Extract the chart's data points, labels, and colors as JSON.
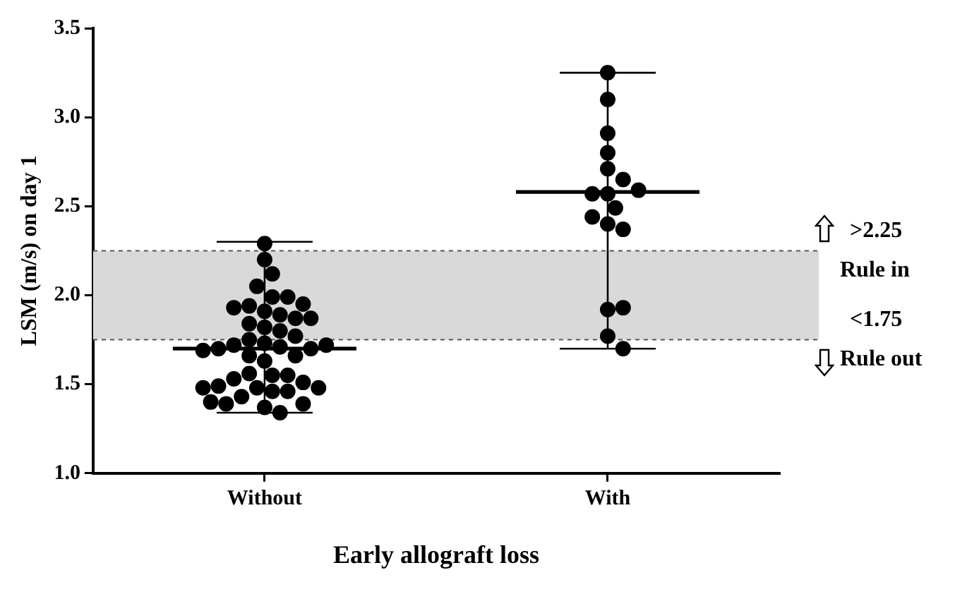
{
  "chart_data": {
    "type": "box",
    "xlabel": "Early allograft loss",
    "ylabel": "LSM (m/s) on day 1",
    "categories": [
      "Without",
      "With"
    ],
    "boxes": [
      {
        "low": 1.34,
        "q1": 1.7,
        "median": 1.7,
        "q3": 1.7,
        "high": 2.3
      },
      {
        "low": 1.7,
        "q1": 2.58,
        "median": 2.58,
        "q3": 2.58,
        "high": 3.25
      }
    ],
    "series": [
      {
        "type": "scatter",
        "color": "#000000",
        "x": [
          "Without",
          "Without",
          "Without",
          "Without",
          "Without",
          "Without",
          "Without",
          "Without",
          "Without",
          "Without",
          "Without",
          "Without",
          "Without",
          "Without",
          "Without",
          "Without",
          "Without",
          "Without",
          "Without",
          "Without",
          "Without",
          "Without",
          "Without",
          "Without",
          "Without",
          "Without",
          "Without",
          "Without",
          "Without",
          "Without",
          "Without",
          "Without",
          "Without",
          "Without",
          "Without",
          "Without",
          "Without",
          "Without",
          "Without",
          "Without",
          "Without",
          "Without",
          "Without",
          "Without",
          "Without",
          "With",
          "With",
          "With",
          "With",
          "With",
          "With",
          "With",
          "With",
          "With",
          "With",
          "With",
          "With",
          "With",
          "With",
          "With",
          "With",
          "With"
        ],
        "values": [
          2.29,
          2.2,
          2.12,
          2.05,
          1.99,
          1.99,
          1.91,
          1.94,
          1.89,
          1.93,
          1.95,
          1.87,
          1.84,
          1.87,
          1.82,
          1.8,
          1.77,
          1.75,
          1.73,
          1.72,
          1.71,
          1.7,
          1.7,
          1.72,
          1.69,
          1.66,
          1.66,
          1.63,
          1.55,
          1.56,
          1.55,
          1.53,
          1.51,
          1.48,
          1.49,
          1.46,
          1.48,
          1.48,
          1.46,
          1.43,
          1.37,
          1.39,
          1.39,
          1.4,
          1.34,
          3.25,
          3.1,
          2.91,
          2.8,
          2.71,
          2.65,
          2.57,
          2.57,
          2.59,
          2.49,
          2.4,
          2.44,
          2.37,
          1.92,
          1.93,
          1.77,
          1.7
        ]
      }
    ],
    "ylim": [
      1,
      3.5
    ],
    "yticks": [
      {
        "value": 1,
        "label": "1.0"
      },
      {
        "value": 1.5,
        "label": "1.5"
      },
      {
        "value": 2,
        "label": "2.0"
      },
      {
        "value": 2.5,
        "label": "2.5"
      },
      {
        "value": 3,
        "label": "3.0"
      },
      {
        "value": 3.5,
        "label": "3.5"
      }
    ],
    "ref_lines": [
      {
        "axis": "y",
        "value": 2.25,
        "line_style": "dashed",
        "color": "#555555"
      },
      {
        "axis": "y",
        "value": 1.75,
        "line_style": "dashed",
        "color": "#555555"
      }
    ],
    "bands": [
      {
        "axis": "y",
        "from": 1.75,
        "to": 2.25,
        "color": "#d9d9d9"
      }
    ],
    "annotations": [
      ">2.25",
      "Rule in",
      "<1.75",
      "Rule out"
    ],
    "grid": false,
    "legend": false,
    "marker": "circle"
  }
}
